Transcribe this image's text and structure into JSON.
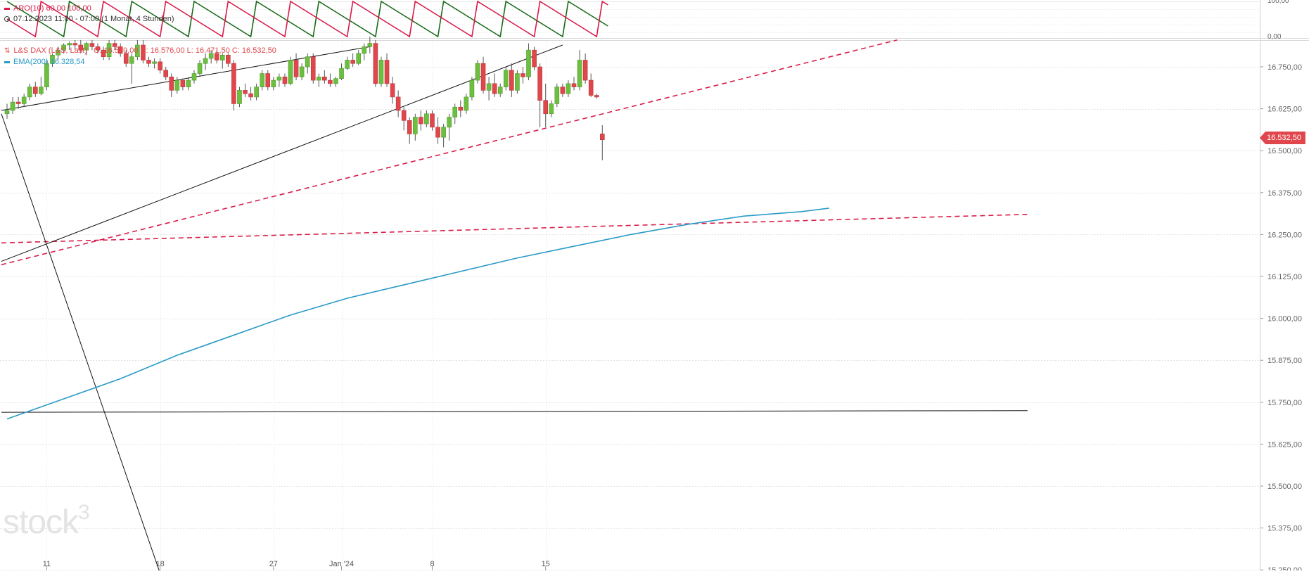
{
  "watermark": {
    "text": "stock",
    "superscript": "3"
  },
  "indicator_panel": {
    "legend": "ARO(10)  60,00  100,00",
    "period": "07.12.2023 11:00 - 07:00   (1 Monat, 4 Stunden)",
    "axis_labels": [
      "100,00",
      "0,00"
    ],
    "colors": {
      "aroon_up": "#1a6b1a",
      "aroon_down": "#d81b4a"
    }
  },
  "price_panel": {
    "legend_instrument": "L&S DAX (L&S, Last)",
    "legend_ohlc": "O: 16.550,00   H: 16.576,00   L: 16.471,50   C: 16.532,50",
    "legend_ema": "EMA(200)  16.328,54",
    "last_price_label": "16.532,50",
    "colors": {
      "up": "#6cbf3f",
      "down": "#e0474c",
      "ema": "#2a9ac6",
      "trend_dashed": "#d81b4a",
      "trend_solid": "#111111",
      "grid": "#e4e4e4"
    }
  },
  "chart_data": {
    "type": "candlestick",
    "interval": "4 hours",
    "y_axis": {
      "range": [
        15250,
        16825
      ],
      "ticks": [
        16750,
        16625,
        16500,
        16375,
        16250,
        16125,
        16000,
        15875,
        15750,
        15625,
        15500,
        15375,
        15250
      ],
      "tick_labels": [
        "16.750,00",
        "16.625,00",
        "16.500,00",
        "16.375,00",
        "16.250,00",
        "16.125,00",
        "16.000,00",
        "15.875,00",
        "15.750,00",
        "15.625,00",
        "15.500,00",
        "15.375,00",
        "15.250,00"
      ]
    },
    "x_axis": {
      "labels": [
        {
          "text": "11",
          "candle": 7
        },
        {
          "text": "18",
          "candle": 27
        },
        {
          "text": "27",
          "candle": 47
        },
        {
          "text": "Jan '24",
          "candle": 59
        },
        {
          "text": "8",
          "candle": 75
        },
        {
          "text": "15",
          "candle": 95
        }
      ]
    },
    "candles": [
      [
        16610,
        16640,
        16595,
        16620
      ],
      [
        16620,
        16660,
        16610,
        16645
      ],
      [
        16645,
        16660,
        16625,
        16640
      ],
      [
        16640,
        16670,
        16630,
        16660
      ],
      [
        16660,
        16700,
        16650,
        16690
      ],
      [
        16690,
        16705,
        16660,
        16670
      ],
      [
        16670,
        16720,
        16665,
        16690
      ],
      [
        16690,
        16770,
        16680,
        16760
      ],
      [
        16760,
        16790,
        16750,
        16785
      ],
      [
        16785,
        16810,
        16770,
        16800
      ],
      [
        16800,
        16820,
        16790,
        16815
      ],
      [
        16815,
        16825,
        16800,
        16820
      ],
      [
        16820,
        16830,
        16800,
        16815
      ],
      [
        16815,
        16830,
        16790,
        16800
      ],
      [
        16800,
        16825,
        16785,
        16820
      ],
      [
        16820,
        16830,
        16800,
        16810
      ],
      [
        16810,
        16820,
        16790,
        16800
      ],
      [
        16800,
        16810,
        16770,
        16780
      ],
      [
        16780,
        16830,
        16770,
        16820
      ],
      [
        16820,
        16830,
        16800,
        16810
      ],
      [
        16810,
        16820,
        16780,
        16790
      ],
      [
        16790,
        16800,
        16750,
        16760
      ],
      [
        16760,
        16790,
        16700,
        16780
      ],
      [
        16780,
        16830,
        16770,
        16815
      ],
      [
        16815,
        16830,
        16760,
        16770
      ],
      [
        16770,
        16780,
        16750,
        16760
      ],
      [
        16760,
        16775,
        16745,
        16765
      ],
      [
        16765,
        16775,
        16730,
        16740
      ],
      [
        16740,
        16750,
        16710,
        16720
      ],
      [
        16720,
        16730,
        16660,
        16680
      ],
      [
        16680,
        16720,
        16670,
        16710
      ],
      [
        16710,
        16715,
        16680,
        16690
      ],
      [
        16690,
        16720,
        16680,
        16710
      ],
      [
        16710,
        16740,
        16700,
        16730
      ],
      [
        16730,
        16770,
        16720,
        16760
      ],
      [
        16760,
        16790,
        16740,
        16775
      ],
      [
        16775,
        16800,
        16760,
        16790
      ],
      [
        16790,
        16800,
        16760,
        16770
      ],
      [
        16770,
        16790,
        16745,
        16785
      ],
      [
        16785,
        16790,
        16750,
        16760
      ],
      [
        16760,
        16770,
        16620,
        16640
      ],
      [
        16640,
        16690,
        16630,
        16680
      ],
      [
        16680,
        16700,
        16660,
        16670
      ],
      [
        16670,
        16690,
        16650,
        16660
      ],
      [
        16660,
        16700,
        16650,
        16690
      ],
      [
        16690,
        16740,
        16680,
        16730
      ],
      [
        16730,
        16740,
        16680,
        16690
      ],
      [
        16690,
        16720,
        16680,
        16710
      ],
      [
        16710,
        16730,
        16690,
        16720
      ],
      [
        16720,
        16730,
        16690,
        16700
      ],
      [
        16700,
        16780,
        16695,
        16770
      ],
      [
        16770,
        16790,
        16710,
        16720
      ],
      [
        16720,
        16760,
        16710,
        16750
      ],
      [
        16750,
        16790,
        16730,
        16780
      ],
      [
        16780,
        16790,
        16700,
        16710
      ],
      [
        16710,
        16730,
        16690,
        16720
      ],
      [
        16720,
        16740,
        16700,
        16710
      ],
      [
        16710,
        16730,
        16690,
        16700
      ],
      [
        16700,
        16720,
        16690,
        16715
      ],
      [
        16715,
        16760,
        16710,
        16745
      ],
      [
        16745,
        16780,
        16740,
        16770
      ],
      [
        16770,
        16790,
        16750,
        16760
      ],
      [
        16760,
        16800,
        16755,
        16790
      ],
      [
        16790,
        16820,
        16770,
        16810
      ],
      [
        16810,
        16840,
        16790,
        16820
      ],
      [
        16820,
        16830,
        16690,
        16700
      ],
      [
        16700,
        16780,
        16690,
        16770
      ],
      [
        16770,
        16790,
        16690,
        16700
      ],
      [
        16700,
        16720,
        16640,
        16660
      ],
      [
        16660,
        16680,
        16600,
        16620
      ],
      [
        16620,
        16630,
        16560,
        16590
      ],
      [
        16590,
        16600,
        16520,
        16550
      ],
      [
        16550,
        16610,
        16530,
        16600
      ],
      [
        16600,
        16620,
        16560,
        16580
      ],
      [
        16580,
        16620,
        16570,
        16610
      ],
      [
        16610,
        16620,
        16560,
        16570
      ],
      [
        16570,
        16600,
        16520,
        16540
      ],
      [
        16540,
        16580,
        16510,
        16570
      ],
      [
        16570,
        16610,
        16530,
        16600
      ],
      [
        16600,
        16640,
        16580,
        16630
      ],
      [
        16630,
        16650,
        16600,
        16620
      ],
      [
        16620,
        16670,
        16610,
        16660
      ],
      [
        16660,
        16720,
        16650,
        16710
      ],
      [
        16710,
        16770,
        16700,
        16760
      ],
      [
        16760,
        16780,
        16670,
        16680
      ],
      [
        16680,
        16720,
        16650,
        16700
      ],
      [
        16700,
        16730,
        16660,
        16670
      ],
      [
        16670,
        16700,
        16660,
        16690
      ],
      [
        16690,
        16750,
        16680,
        16740
      ],
      [
        16740,
        16760,
        16660,
        16680
      ],
      [
        16680,
        16740,
        16670,
        16730
      ],
      [
        16730,
        16750,
        16700,
        16720
      ],
      [
        16720,
        16820,
        16710,
        16800
      ],
      [
        16800,
        16810,
        16740,
        16750
      ],
      [
        16750,
        16760,
        16570,
        16650
      ],
      [
        16650,
        16700,
        16570,
        16610
      ],
      [
        16610,
        16650,
        16600,
        16640
      ],
      [
        16640,
        16700,
        16630,
        16690
      ],
      [
        16690,
        16700,
        16660,
        16670
      ],
      [
        16670,
        16710,
        16660,
        16700
      ],
      [
        16700,
        16720,
        16680,
        16690
      ],
      [
        16690,
        16800,
        16680,
        16770
      ],
      [
        16770,
        16790,
        16700,
        16710
      ],
      [
        16710,
        16730,
        16660,
        16665
      ],
      [
        16665,
        16670,
        16655,
        16660
      ],
      [
        16550,
        16576,
        16471.5,
        16532.5
      ]
    ],
    "ema200": [
      [
        0,
        15700
      ],
      [
        10,
        15760
      ],
      [
        20,
        15820
      ],
      [
        30,
        15890
      ],
      [
        40,
        15950
      ],
      [
        50,
        16010
      ],
      [
        60,
        16060
      ],
      [
        70,
        16100
      ],
      [
        80,
        16140
      ],
      [
        90,
        16180
      ],
      [
        100,
        16215
      ],
      [
        110,
        16250
      ],
      [
        120,
        16280
      ],
      [
        130,
        16305
      ],
      [
        140,
        16318
      ],
      [
        145,
        16328.54
      ]
    ],
    "trend_lines": [
      {
        "style": "dashed",
        "points": [
          [
            -1,
            16160
          ],
          [
            157,
            16830
          ]
        ]
      },
      {
        "style": "dashed",
        "points": [
          [
            -1,
            16225
          ],
          [
            180,
            16310
          ]
        ]
      },
      {
        "style": "solid",
        "points": [
          [
            -1,
            16170
          ],
          [
            98,
            16815
          ]
        ]
      },
      {
        "style": "solid",
        "points": [
          [
            -1,
            16620
          ],
          [
            64,
            16810
          ]
        ]
      },
      {
        "style": "solid",
        "points": [
          [
            -1,
            15720
          ],
          [
            180,
            15725
          ]
        ]
      },
      {
        "style": "solid",
        "points": [
          [
            -1,
            16610
          ],
          [
            27,
            15240
          ]
        ]
      }
    ]
  }
}
